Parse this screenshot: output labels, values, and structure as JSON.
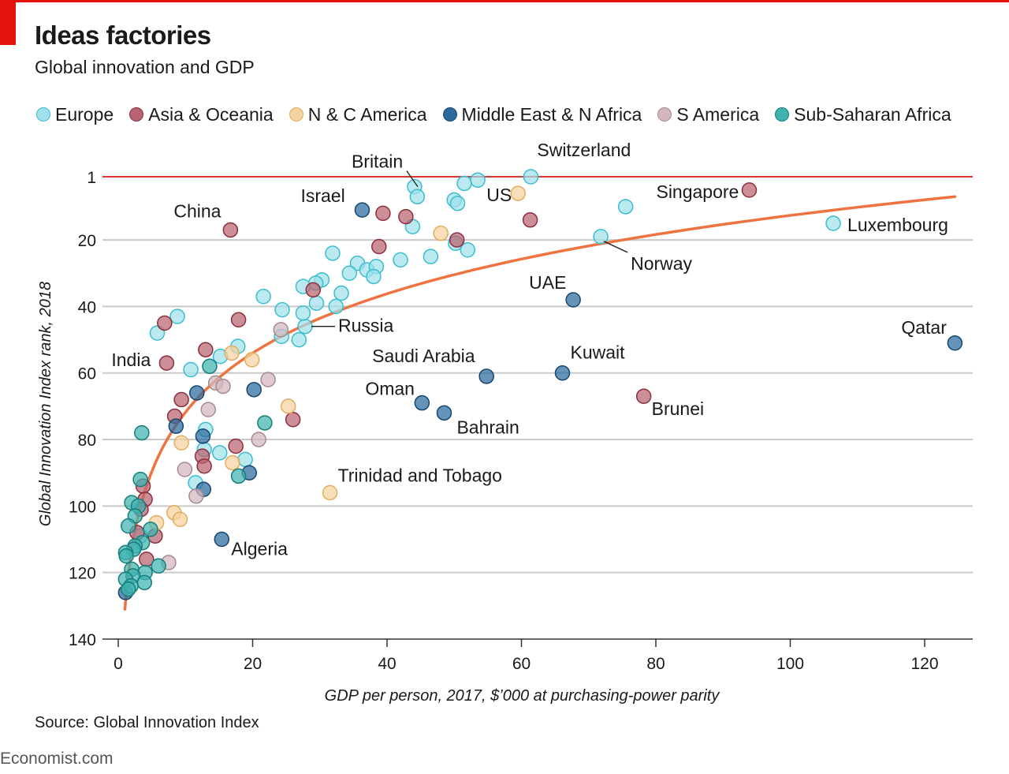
{
  "title": "Ideas factories",
  "subtitle": "Global innovation and GDP",
  "source": "Source: Global Innovation Index",
  "brand": "Economist.com",
  "legend": [
    {
      "key": "europe",
      "label": "Europe"
    },
    {
      "key": "asia",
      "label": "Asia & Oceania"
    },
    {
      "key": "nca",
      "label": "N & C America"
    },
    {
      "key": "mena",
      "label": "Middle East & N Africa"
    },
    {
      "key": "sam",
      "label": "S America"
    },
    {
      "key": "ssa",
      "label": "Sub-Saharan Africa"
    }
  ],
  "colors": {
    "europe": {
      "fill": "#9fe0ea",
      "stroke": "#3bbdd0"
    },
    "asia": {
      "fill": "#b8636f",
      "stroke": "#8c2f3c"
    },
    "nca": {
      "fill": "#f5d29e",
      "stroke": "#e0ae60"
    },
    "mena": {
      "fill": "#2a6a9e",
      "stroke": "#17466e"
    },
    "sam": {
      "fill": "#d2b7bd",
      "stroke": "#a58a90"
    },
    "ssa": {
      "fill": "#3fb3b0",
      "stroke": "#167d7b"
    },
    "trend": "#ef7341",
    "rank_one_line": "#d7372c",
    "grid": "#c9c9c9"
  },
  "chart_data": {
    "type": "scatter",
    "xlabel": "GDP per person, 2017, $’000 at purchasing-power parity",
    "ylabel": "Global Innovation Index rank, 2018",
    "xlim": [
      0,
      127
    ],
    "ylim": [
      140,
      1
    ],
    "x_ticks": [
      0,
      20,
      40,
      60,
      80,
      100,
      120
    ],
    "y_ticks": [
      1,
      20,
      40,
      60,
      80,
      100,
      120,
      140
    ],
    "grid": "horizontal",
    "legend_position": "top",
    "reference_line": {
      "rank": 1
    },
    "trend": {
      "type": "logarithmic",
      "x_range": [
        1,
        124.5
      ],
      "y_at_start": 131,
      "y_at_end": 7
    },
    "points": [
      {
        "label": "Britain",
        "x": 44.1,
        "y": 4,
        "region": "europe"
      },
      {
        "label": "Switzerland",
        "x": 61.4,
        "y": 1,
        "region": "europe"
      },
      {
        "label": "Israel",
        "x": 36.3,
        "y": 11,
        "region": "mena"
      },
      {
        "label": "US",
        "x": 59.5,
        "y": 6,
        "region": "nca"
      },
      {
        "label": "Singapore",
        "x": 93.9,
        "y": 5,
        "region": "asia"
      },
      {
        "label": "China",
        "x": 16.7,
        "y": 17,
        "region": "asia"
      },
      {
        "label": "Luxembourg",
        "x": 106.4,
        "y": 15,
        "region": "europe"
      },
      {
        "label": "Norway",
        "x": 71.8,
        "y": 19,
        "region": "europe"
      },
      {
        "label": "UAE",
        "x": 67.7,
        "y": 38,
        "region": "mena"
      },
      {
        "label": "Qatar",
        "x": 124.5,
        "y": 51,
        "region": "mena"
      },
      {
        "label": "Russia",
        "x": 27.8,
        "y": 46,
        "region": "europe"
      },
      {
        "label": "India",
        "x": 7.2,
        "y": 57,
        "region": "asia"
      },
      {
        "label": "Saudi Arabia",
        "x": 54.8,
        "y": 61,
        "region": "mena"
      },
      {
        "label": "Kuwait",
        "x": 66.1,
        "y": 60,
        "region": "mena"
      },
      {
        "label": "Oman",
        "x": 45.2,
        "y": 69,
        "region": "mena"
      },
      {
        "label": "Bahrain",
        "x": 48.5,
        "y": 72,
        "region": "mena"
      },
      {
        "label": "Brunei",
        "x": 78.2,
        "y": 67,
        "region": "asia"
      },
      {
        "label": "Trinidad and Tobago",
        "x": 31.5,
        "y": 96,
        "region": "nca"
      },
      {
        "label": "Algeria",
        "x": 15.4,
        "y": 110,
        "region": "mena"
      },
      {
        "x": 44.5,
        "y": 7,
        "region": "europe"
      },
      {
        "x": 51.5,
        "y": 3,
        "region": "europe"
      },
      {
        "x": 53.5,
        "y": 2,
        "region": "europe"
      },
      {
        "x": 50.0,
        "y": 8,
        "region": "europe"
      },
      {
        "x": 50.5,
        "y": 9,
        "region": "europe"
      },
      {
        "x": 75.5,
        "y": 10,
        "region": "europe"
      },
      {
        "x": 43.8,
        "y": 16,
        "region": "europe"
      },
      {
        "x": 50.2,
        "y": 21,
        "region": "europe"
      },
      {
        "x": 52.0,
        "y": 23,
        "region": "europe"
      },
      {
        "x": 46.5,
        "y": 25,
        "region": "europe"
      },
      {
        "x": 42.0,
        "y": 26,
        "region": "europe"
      },
      {
        "x": 31.9,
        "y": 24,
        "region": "europe"
      },
      {
        "x": 35.6,
        "y": 27,
        "region": "europe"
      },
      {
        "x": 37.0,
        "y": 29,
        "region": "europe"
      },
      {
        "x": 38.4,
        "y": 28,
        "region": "europe"
      },
      {
        "x": 34.4,
        "y": 30,
        "region": "europe"
      },
      {
        "x": 38.0,
        "y": 31,
        "region": "europe"
      },
      {
        "x": 30.3,
        "y": 32,
        "region": "europe"
      },
      {
        "x": 29.4,
        "y": 33,
        "region": "europe"
      },
      {
        "x": 27.5,
        "y": 34,
        "region": "europe"
      },
      {
        "x": 33.2,
        "y": 36,
        "region": "europe"
      },
      {
        "x": 21.6,
        "y": 37,
        "region": "europe"
      },
      {
        "x": 29.5,
        "y": 39,
        "region": "europe"
      },
      {
        "x": 32.4,
        "y": 40,
        "region": "europe"
      },
      {
        "x": 24.4,
        "y": 41,
        "region": "europe"
      },
      {
        "x": 27.5,
        "y": 42,
        "region": "europe"
      },
      {
        "x": 8.8,
        "y": 43,
        "region": "europe"
      },
      {
        "x": 5.8,
        "y": 48,
        "region": "europe"
      },
      {
        "x": 24.3,
        "y": 49,
        "region": "europe"
      },
      {
        "x": 26.9,
        "y": 50,
        "region": "europe"
      },
      {
        "x": 17.8,
        "y": 52,
        "region": "europe"
      },
      {
        "x": 15.2,
        "y": 55,
        "region": "europe"
      },
      {
        "x": 10.8,
        "y": 59,
        "region": "europe"
      },
      {
        "x": 13.0,
        "y": 77,
        "region": "europe"
      },
      {
        "x": 12.8,
        "y": 83,
        "region": "europe"
      },
      {
        "x": 15.1,
        "y": 84,
        "region": "europe"
      },
      {
        "x": 18.9,
        "y": 86,
        "region": "europe"
      },
      {
        "x": 11.5,
        "y": 93,
        "region": "europe"
      },
      {
        "x": 3.3,
        "y": 109,
        "region": "europe"
      },
      {
        "x": 61.3,
        "y": 14,
        "region": "asia"
      },
      {
        "x": 39.4,
        "y": 12,
        "region": "asia"
      },
      {
        "x": 42.8,
        "y": 13,
        "region": "asia"
      },
      {
        "x": 38.8,
        "y": 22,
        "region": "asia"
      },
      {
        "x": 50.4,
        "y": 20,
        "region": "asia"
      },
      {
        "x": 29.0,
        "y": 35,
        "region": "asia"
      },
      {
        "x": 17.9,
        "y": 44,
        "region": "asia"
      },
      {
        "x": 6.9,
        "y": 45,
        "region": "asia"
      },
      {
        "x": 13.0,
        "y": 53,
        "region": "asia"
      },
      {
        "x": 9.4,
        "y": 68,
        "region": "asia"
      },
      {
        "x": 8.4,
        "y": 73,
        "region": "asia"
      },
      {
        "x": 26.0,
        "y": 74,
        "region": "asia"
      },
      {
        "x": 17.5,
        "y": 82,
        "region": "asia"
      },
      {
        "x": 12.5,
        "y": 85,
        "region": "asia"
      },
      {
        "x": 12.8,
        "y": 88,
        "region": "asia"
      },
      {
        "x": 3.7,
        "y": 94,
        "region": "asia"
      },
      {
        "x": 4.0,
        "y": 98,
        "region": "asia"
      },
      {
        "x": 3.4,
        "y": 101,
        "region": "asia"
      },
      {
        "x": 2.8,
        "y": 108,
        "region": "asia"
      },
      {
        "x": 5.5,
        "y": 109,
        "region": "asia"
      },
      {
        "x": 4.2,
        "y": 116,
        "region": "asia"
      },
      {
        "x": 48.0,
        "y": 18,
        "region": "nca"
      },
      {
        "x": 16.9,
        "y": 54,
        "region": "nca"
      },
      {
        "x": 19.9,
        "y": 56,
        "region": "nca"
      },
      {
        "x": 25.3,
        "y": 70,
        "region": "nca"
      },
      {
        "x": 9.4,
        "y": 81,
        "region": "nca"
      },
      {
        "x": 17.0,
        "y": 87,
        "region": "nca"
      },
      {
        "x": 8.3,
        "y": 102,
        "region": "nca"
      },
      {
        "x": 9.2,
        "y": 104,
        "region": "nca"
      },
      {
        "x": 5.7,
        "y": 105,
        "region": "nca"
      },
      {
        "x": 11.7,
        "y": 66,
        "region": "mena"
      },
      {
        "x": 20.2,
        "y": 65,
        "region": "mena"
      },
      {
        "x": 8.6,
        "y": 76,
        "region": "mena"
      },
      {
        "x": 12.6,
        "y": 79,
        "region": "mena"
      },
      {
        "x": 19.5,
        "y": 90,
        "region": "mena"
      },
      {
        "x": 12.7,
        "y": 95,
        "region": "mena"
      },
      {
        "x": 1.1,
        "y": 126,
        "region": "mena"
      },
      {
        "x": 24.2,
        "y": 47,
        "region": "sam"
      },
      {
        "x": 14.5,
        "y": 63,
        "region": "sam"
      },
      {
        "x": 15.6,
        "y": 64,
        "region": "sam"
      },
      {
        "x": 22.3,
        "y": 62,
        "region": "sam"
      },
      {
        "x": 13.4,
        "y": 71,
        "region": "sam"
      },
      {
        "x": 20.9,
        "y": 80,
        "region": "sam"
      },
      {
        "x": 9.9,
        "y": 89,
        "region": "sam"
      },
      {
        "x": 11.6,
        "y": 97,
        "region": "sam"
      },
      {
        "x": 7.5,
        "y": 117,
        "region": "sam"
      },
      {
        "x": 13.6,
        "y": 58,
        "region": "ssa"
      },
      {
        "x": 21.8,
        "y": 75,
        "region": "ssa"
      },
      {
        "x": 3.5,
        "y": 78,
        "region": "ssa"
      },
      {
        "x": 17.9,
        "y": 91,
        "region": "ssa"
      },
      {
        "x": 3.3,
        "y": 92,
        "region": "ssa"
      },
      {
        "x": 2.0,
        "y": 99,
        "region": "ssa"
      },
      {
        "x": 3.0,
        "y": 100,
        "region": "ssa"
      },
      {
        "x": 2.5,
        "y": 103,
        "region": "ssa"
      },
      {
        "x": 1.5,
        "y": 106,
        "region": "ssa"
      },
      {
        "x": 4.8,
        "y": 107,
        "region": "ssa"
      },
      {
        "x": 3.6,
        "y": 111,
        "region": "ssa"
      },
      {
        "x": 2.5,
        "y": 112,
        "region": "ssa"
      },
      {
        "x": 2.3,
        "y": 113,
        "region": "ssa"
      },
      {
        "x": 1.1,
        "y": 114,
        "region": "ssa"
      },
      {
        "x": 1.2,
        "y": 115,
        "region": "ssa"
      },
      {
        "x": 6.0,
        "y": 118,
        "region": "ssa"
      },
      {
        "x": 2.0,
        "y": 119,
        "region": "ssa"
      },
      {
        "x": 4.0,
        "y": 120,
        "region": "ssa"
      },
      {
        "x": 2.2,
        "y": 121,
        "region": "ssa"
      },
      {
        "x": 1.1,
        "y": 122,
        "region": "ssa"
      },
      {
        "x": 3.9,
        "y": 123,
        "region": "ssa"
      },
      {
        "x": 1.9,
        "y": 124,
        "region": "ssa"
      },
      {
        "x": 1.5,
        "y": 125,
        "region": "ssa"
      }
    ]
  }
}
